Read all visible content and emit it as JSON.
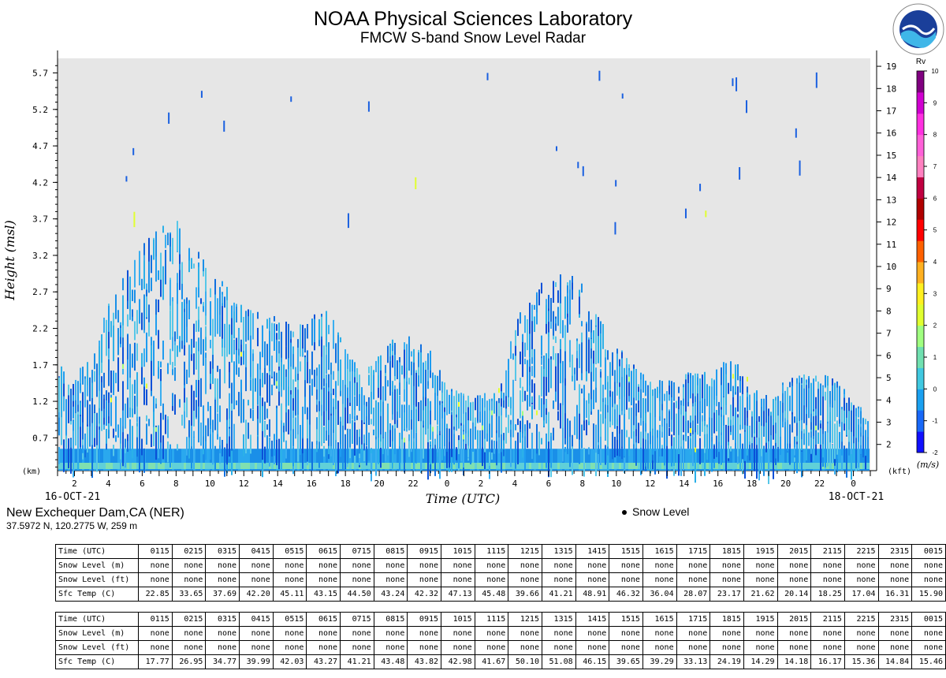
{
  "header": {
    "title": "NOAA Physical Sciences Laboratory",
    "subtitle": "FMCW S-band Snow Level Radar",
    "logo_text": "NOAA"
  },
  "station": {
    "name": "New Exchequer Dam,CA (NER)",
    "coords": "37.5972 N, 120.2775 W, 259 m"
  },
  "legend": {
    "snow_level": "Snow Level"
  },
  "chart_data": {
    "type": "heatmap",
    "title": "NOAA Physical Sciences Laboratory",
    "subtitle": "FMCW S-band Snow Level Radar",
    "xlabel": "Time (UTC)",
    "ylabel": "Height (msl)",
    "y_left_unit": "(km)",
    "y_right_unit": "(kft)",
    "colorbar_title": "Rv",
    "colorbar_unit": "(m/s)",
    "start_date": "16-OCT-21",
    "end_date": "18-OCT-21",
    "x_tick_labels": [
      "2",
      "4",
      "6",
      "8",
      "10",
      "12",
      "14",
      "16",
      "18",
      "20",
      "22",
      "0",
      "2",
      "4",
      "6",
      "8",
      "10",
      "12",
      "14",
      "16",
      "18",
      "20",
      "22",
      "0"
    ],
    "y_left_ticks": [
      "0.7",
      "1.2",
      "1.7",
      "2.2",
      "2.7",
      "3.2",
      "3.7",
      "4.2",
      "4.7",
      "5.2",
      "5.7"
    ],
    "y_right_ticks": [
      "2",
      "3",
      "4",
      "5",
      "6",
      "7",
      "8",
      "9",
      "10",
      "11",
      "12",
      "13",
      "14",
      "15",
      "16",
      "17",
      "18",
      "19"
    ],
    "colorbar_ticks": [
      "-2",
      "-1",
      "0",
      "1",
      "2",
      "3",
      "4",
      "5",
      "6",
      "7",
      "8",
      "9",
      "10"
    ],
    "colorbar_colors": [
      "#1010ff",
      "#1868f8",
      "#1aa0f0",
      "#40c8e0",
      "#70e0b0",
      "#a0ff80",
      "#e0ff30",
      "#fff020",
      "#ffb020",
      "#ff6000",
      "#ff0000",
      "#b00000",
      "#c00040",
      "#ff80c0",
      "#ff60d8",
      "#ff30e0",
      "#d000d0",
      "#800080"
    ],
    "xlim_hours": [
      0,
      48
    ],
    "ylim_km": [
      0.25,
      5.9
    ],
    "echo_top_km": [
      [
        0.0,
        1.7
      ],
      [
        1.0,
        1.6
      ],
      [
        2.0,
        1.8
      ],
      [
        3.0,
        2.6
      ],
      [
        4.0,
        3.1
      ],
      [
        5.0,
        3.4
      ],
      [
        6.0,
        3.6
      ],
      [
        7.0,
        3.7
      ],
      [
        8.0,
        3.4
      ],
      [
        9.0,
        3.0
      ],
      [
        10.0,
        2.8
      ],
      [
        11.0,
        2.6
      ],
      [
        12.0,
        2.4
      ],
      [
        13.0,
        2.4
      ],
      [
        14.0,
        2.2
      ],
      [
        15.0,
        2.4
      ],
      [
        16.0,
        2.5
      ],
      [
        17.0,
        1.9
      ],
      [
        18.0,
        1.6
      ],
      [
        19.0,
        1.9
      ],
      [
        20.0,
        2.1
      ],
      [
        21.0,
        2.1
      ],
      [
        22.0,
        1.9
      ],
      [
        23.0,
        1.4
      ],
      [
        24.0,
        1.3
      ],
      [
        25.0,
        1.3
      ],
      [
        26.0,
        1.4
      ],
      [
        27.0,
        2.3
      ],
      [
        28.0,
        2.8
      ],
      [
        29.0,
        3.0
      ],
      [
        30.0,
        3.0
      ],
      [
        31.0,
        2.8
      ],
      [
        32.0,
        2.4
      ],
      [
        33.0,
        2.0
      ],
      [
        34.0,
        1.7
      ],
      [
        35.0,
        1.5
      ],
      [
        36.0,
        1.5
      ],
      [
        37.0,
        1.6
      ],
      [
        38.0,
        1.6
      ],
      [
        39.0,
        1.7
      ],
      [
        40.0,
        1.9
      ],
      [
        41.0,
        1.4
      ],
      [
        42.0,
        1.3
      ],
      [
        43.0,
        1.5
      ],
      [
        44.0,
        1.6
      ],
      [
        45.0,
        1.6
      ],
      [
        46.0,
        1.5
      ],
      [
        47.0,
        1.2
      ],
      [
        48.0,
        1.0
      ]
    ],
    "grid": false,
    "snow_level_points": []
  },
  "tables": [
    {
      "rows": [
        {
          "label": "Time (UTC)",
          "values": [
            "0115",
            "0215",
            "0315",
            "0415",
            "0515",
            "0615",
            "0715",
            "0815",
            "0915",
            "1015",
            "1115",
            "1215",
            "1315",
            "1415",
            "1515",
            "1615",
            "1715",
            "1815",
            "1915",
            "2015",
            "2115",
            "2215",
            "2315",
            "0015"
          ]
        },
        {
          "label": "Snow Level (m)",
          "values": [
            "none",
            "none",
            "none",
            "none",
            "none",
            "none",
            "none",
            "none",
            "none",
            "none",
            "none",
            "none",
            "none",
            "none",
            "none",
            "none",
            "none",
            "none",
            "none",
            "none",
            "none",
            "none",
            "none",
            "none"
          ]
        },
        {
          "label": "Snow Level (ft)",
          "values": [
            "none",
            "none",
            "none",
            "none",
            "none",
            "none",
            "none",
            "none",
            "none",
            "none",
            "none",
            "none",
            "none",
            "none",
            "none",
            "none",
            "none",
            "none",
            "none",
            "none",
            "none",
            "none",
            "none",
            "none"
          ]
        },
        {
          "label": "Sfc Temp (C)",
          "values": [
            "22.85",
            "33.65",
            "37.69",
            "42.20",
            "45.11",
            "43.15",
            "44.50",
            "43.24",
            "42.32",
            "47.13",
            "45.48",
            "39.66",
            "41.21",
            "48.91",
            "46.32",
            "36.04",
            "28.07",
            "23.17",
            "21.62",
            "20.14",
            "18.25",
            "17.04",
            "16.31",
            "15.90"
          ]
        }
      ]
    },
    {
      "rows": [
        {
          "label": "Time (UTC)",
          "values": [
            "0115",
            "0215",
            "0315",
            "0415",
            "0515",
            "0615",
            "0715",
            "0815",
            "0915",
            "1015",
            "1115",
            "1215",
            "1315",
            "1415",
            "1515",
            "1615",
            "1715",
            "1815",
            "1915",
            "2015",
            "2115",
            "2215",
            "2315",
            "0015"
          ]
        },
        {
          "label": "Snow Level (m)",
          "values": [
            "none",
            "none",
            "none",
            "none",
            "none",
            "none",
            "none",
            "none",
            "none",
            "none",
            "none",
            "none",
            "none",
            "none",
            "none",
            "none",
            "none",
            "none",
            "none",
            "none",
            "none",
            "none",
            "none",
            "none"
          ]
        },
        {
          "label": "Snow Level (ft)",
          "values": [
            "none",
            "none",
            "none",
            "none",
            "none",
            "none",
            "none",
            "none",
            "none",
            "none",
            "none",
            "none",
            "none",
            "none",
            "none",
            "none",
            "none",
            "none",
            "none",
            "none",
            "none",
            "none",
            "none",
            "none"
          ]
        },
        {
          "label": "Sfc Temp (C)",
          "values": [
            "17.77",
            "26.95",
            "34.77",
            "39.99",
            "42.03",
            "43.27",
            "41.21",
            "43.48",
            "43.82",
            "42.98",
            "41.67",
            "50.10",
            "51.08",
            "46.15",
            "39.65",
            "39.29",
            "33.13",
            "24.19",
            "14.29",
            "14.18",
            "16.17",
            "15.36",
            "14.84",
            "15.46"
          ]
        }
      ]
    }
  ]
}
